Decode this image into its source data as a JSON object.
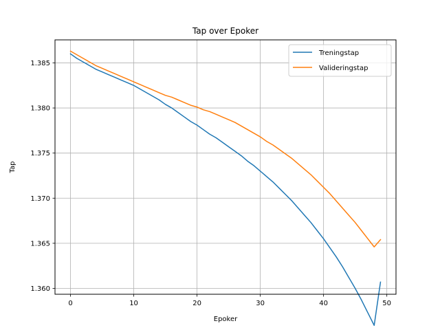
{
  "chart_data": {
    "type": "line",
    "title": "Tap over Epoker",
    "xlabel": "Epoker",
    "ylabel": "Tap",
    "xlim": [
      -2.45,
      51.45
    ],
    "ylim": [
      1.35935,
      1.38755
    ],
    "xticks": [
      0,
      10,
      20,
      30,
      40,
      50
    ],
    "yticks": [
      1.36,
      1.365,
      1.37,
      1.375,
      1.38,
      1.385
    ],
    "grid": true,
    "legend_position": "top-right",
    "series": [
      {
        "name": "Treningstap",
        "color": "#1f77b4",
        "x": [
          0,
          1,
          2,
          3,
          4,
          5,
          6,
          7,
          8,
          9,
          10,
          11,
          12,
          13,
          14,
          15,
          16,
          17,
          18,
          19,
          20,
          21,
          22,
          23,
          24,
          25,
          26,
          27,
          28,
          29,
          30,
          31,
          32,
          33,
          34,
          35,
          36,
          37,
          38,
          39,
          40,
          41,
          42,
          43,
          44,
          45,
          46,
          47,
          48,
          49
        ],
        "y": [
          1.386,
          1.3855,
          1.3851,
          1.3847,
          1.3843,
          1.384,
          1.3837,
          1.3834,
          1.3831,
          1.3828,
          1.3825,
          1.3821,
          1.3817,
          1.3813,
          1.3809,
          1.3804,
          1.38,
          1.3795,
          1.379,
          1.3785,
          1.3781,
          1.3776,
          1.3771,
          1.3767,
          1.3762,
          1.3757,
          1.3752,
          1.3747,
          1.3741,
          1.3736,
          1.373,
          1.3724,
          1.3718,
          1.3711,
          1.3704,
          1.3697,
          1.3689,
          1.3681,
          1.3673,
          1.3664,
          1.3655,
          1.3645,
          1.3635,
          1.3624,
          1.3612,
          1.36,
          1.3587,
          1.3573,
          1.3559,
          1.3607
        ]
      },
      {
        "name": "Valideringstap",
        "color": "#ff7f0e",
        "x": [
          0,
          1,
          2,
          3,
          4,
          5,
          6,
          7,
          8,
          9,
          10,
          11,
          12,
          13,
          14,
          15,
          16,
          17,
          18,
          19,
          20,
          21,
          22,
          23,
          24,
          25,
          26,
          27,
          28,
          29,
          30,
          31,
          32,
          33,
          34,
          35,
          36,
          37,
          38,
          39,
          40,
          41,
          42,
          43,
          44,
          45,
          46,
          47,
          48,
          49
        ],
        "y": [
          1.3863,
          1.3859,
          1.3855,
          1.3851,
          1.3847,
          1.3844,
          1.3841,
          1.3838,
          1.3835,
          1.3832,
          1.3829,
          1.3826,
          1.3823,
          1.382,
          1.3817,
          1.3814,
          1.3812,
          1.3809,
          1.3806,
          1.3803,
          1.3801,
          1.3798,
          1.3796,
          1.3793,
          1.379,
          1.3787,
          1.3784,
          1.378,
          1.3776,
          1.3772,
          1.3768,
          1.3763,
          1.3759,
          1.3754,
          1.3749,
          1.3744,
          1.3738,
          1.3732,
          1.3726,
          1.3719,
          1.3712,
          1.3705,
          1.3697,
          1.3689,
          1.3681,
          1.3673,
          1.3664,
          1.3655,
          1.3646,
          1.3654
        ]
      }
    ]
  }
}
